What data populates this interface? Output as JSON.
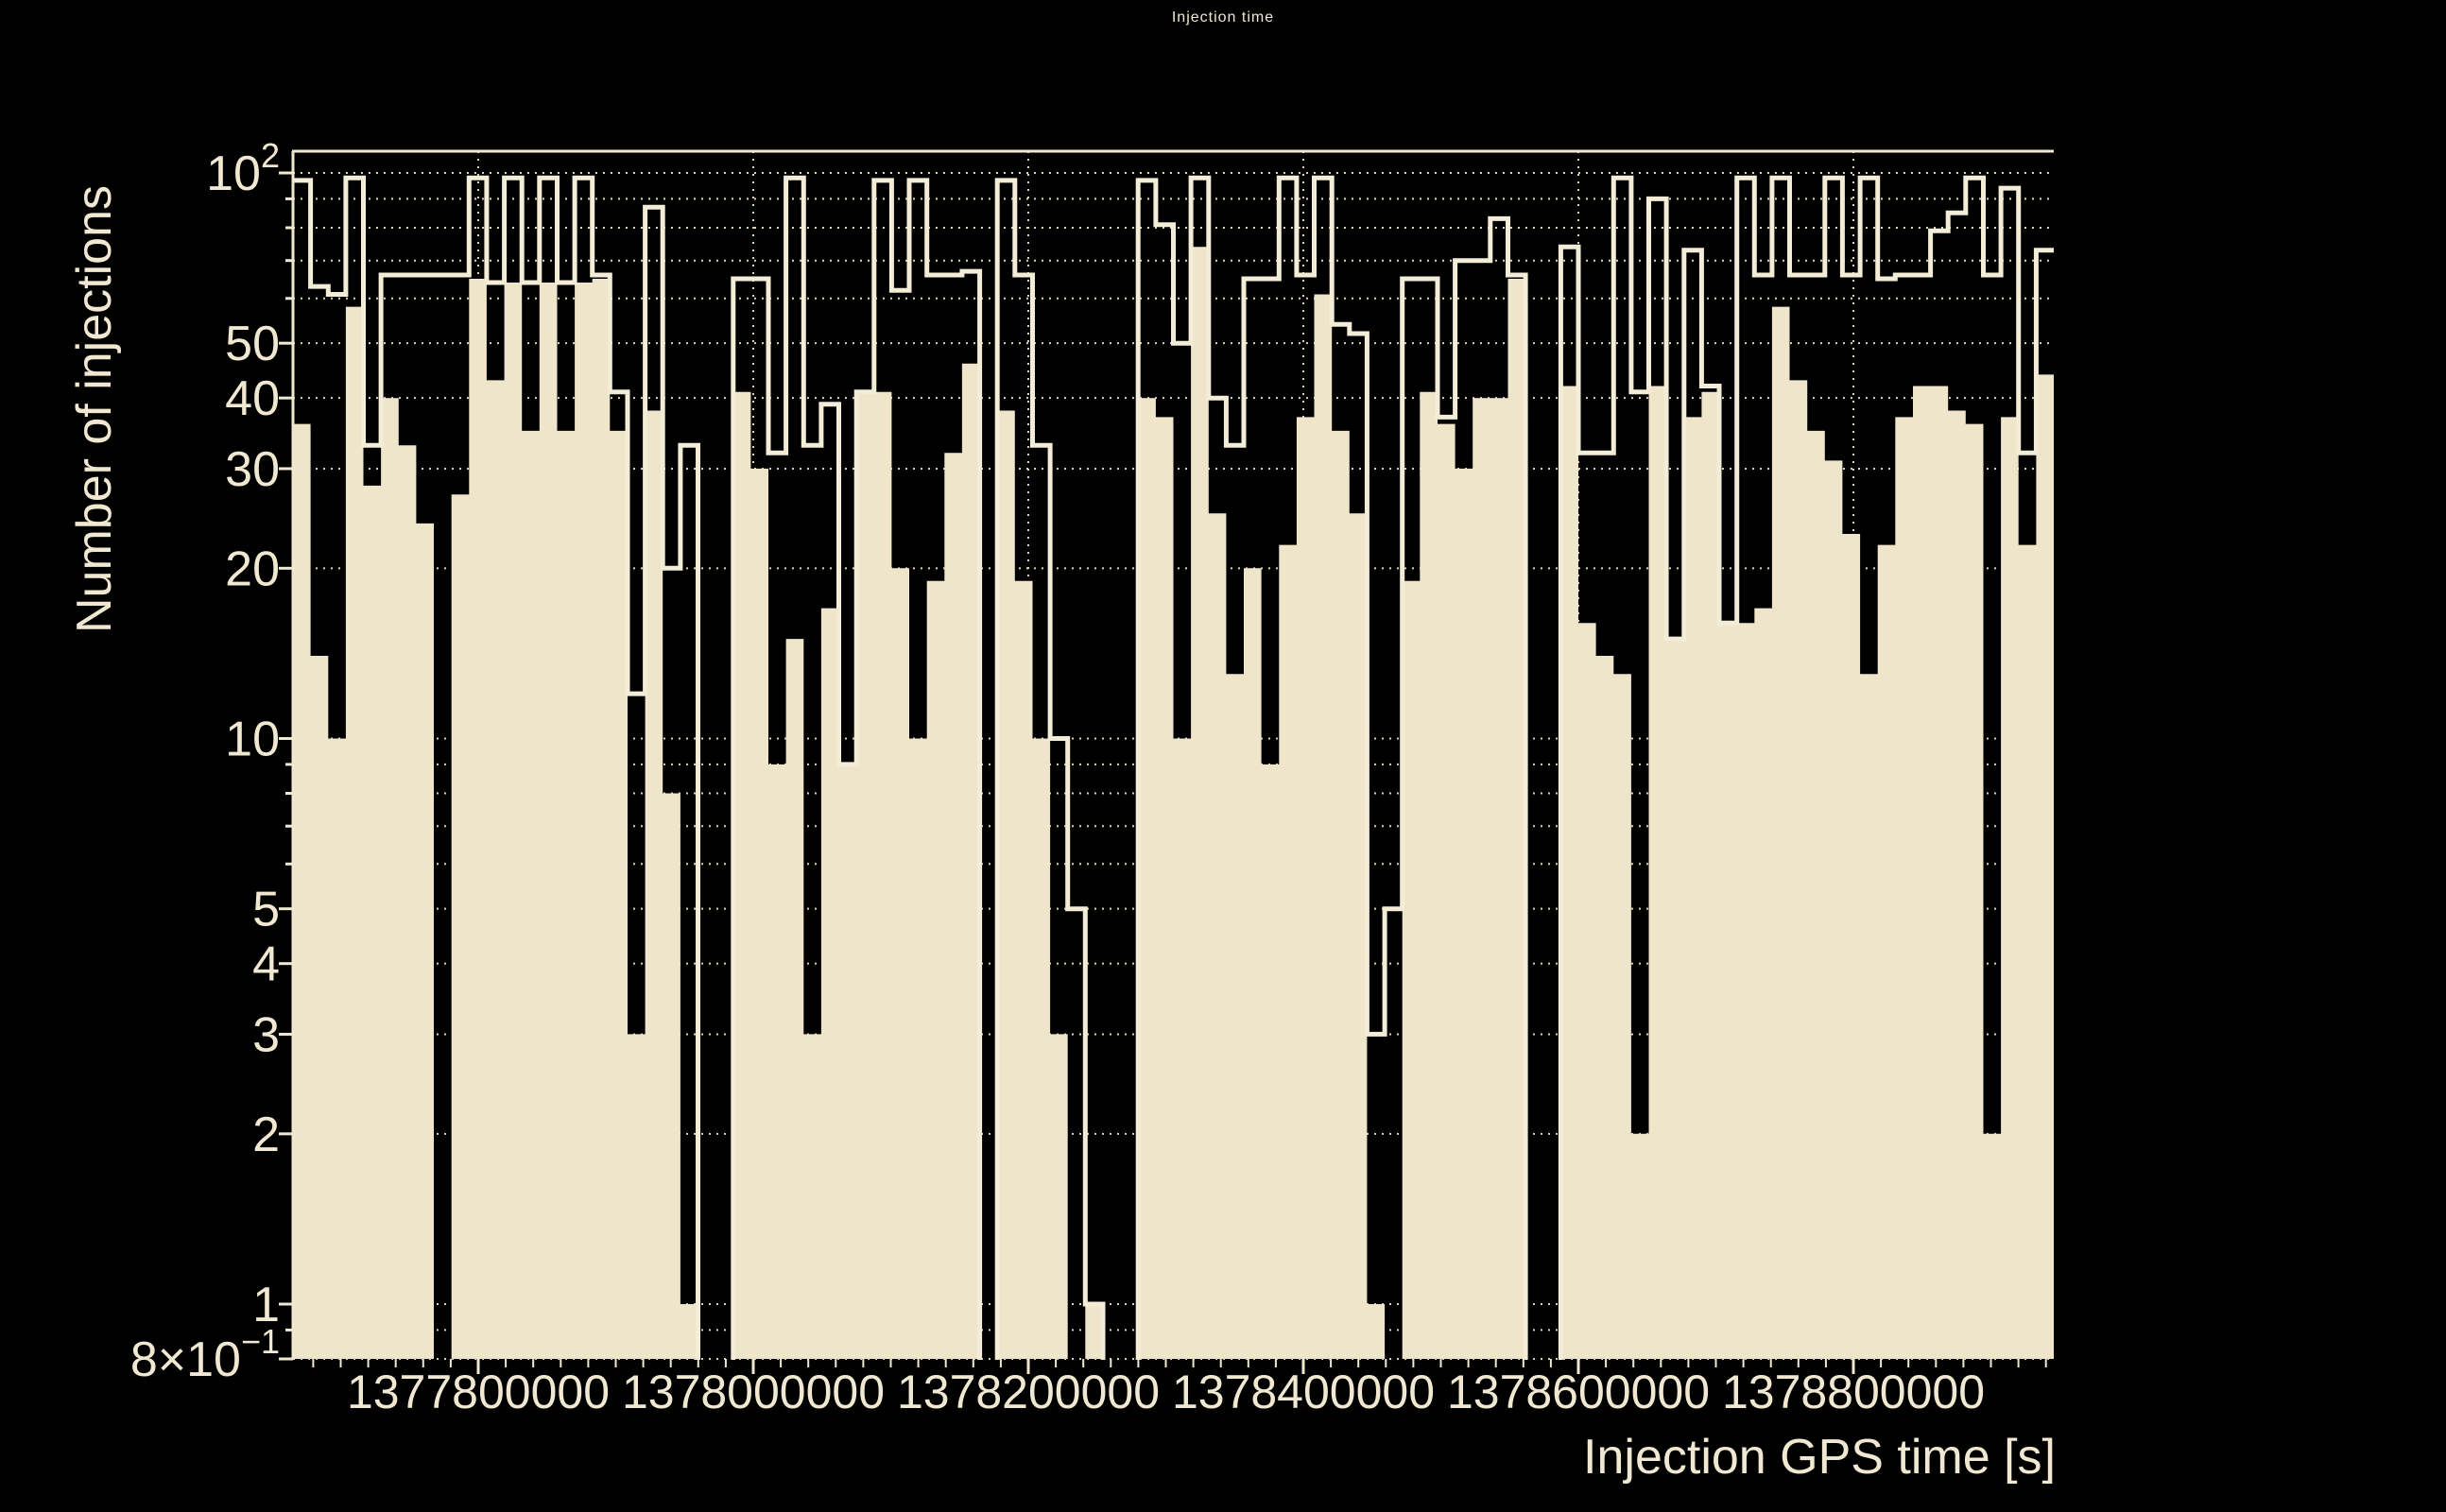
{
  "title": "Injection time",
  "colors": {
    "background": "#000000",
    "fill_histogram": "#EEE5CA",
    "outline_histogram": "#F3ECD6",
    "grid": "#DDD3B2",
    "axis": "#F0E8D1",
    "text": "#F0E8D1"
  },
  "y_axis": {
    "title": "Number of injections",
    "scale": "log",
    "range": [
      0.8,
      109
    ],
    "tick_labels": [
      {
        "value": 100,
        "text": "10",
        "sup": "2"
      },
      {
        "value": 50,
        "text": "50"
      },
      {
        "value": 40,
        "text": "40"
      },
      {
        "value": 30,
        "text": "30"
      },
      {
        "value": 20,
        "text": "20"
      },
      {
        "value": 10,
        "text": "10"
      },
      {
        "value": 5,
        "text": "5"
      },
      {
        "value": 4,
        "text": "4"
      },
      {
        "value": 3,
        "text": "3"
      },
      {
        "value": 2,
        "text": "2"
      },
      {
        "value": 1,
        "text": "1"
      },
      {
        "value": 0.8,
        "text": "8×10",
        "sup": "−1"
      }
    ],
    "gridline_values": [
      0.9,
      1,
      2,
      3,
      4,
      5,
      6,
      7,
      8,
      9,
      10,
      20,
      30,
      40,
      50,
      60,
      70,
      80,
      90,
      100
    ]
  },
  "x_axis": {
    "title": "Injection GPS time [s]",
    "range": [
      1377665300,
      1378945700
    ],
    "ticks": [
      {
        "value": 1377800000,
        "label": "1377800000"
      },
      {
        "value": 1378000000,
        "label": "1378000000"
      },
      {
        "value": 1378200000,
        "label": "1378200000"
      },
      {
        "value": 1378400000,
        "label": "1378400000"
      },
      {
        "value": 1378600000,
        "label": "1378600000"
      },
      {
        "value": 1378800000,
        "label": "1378800000"
      }
    ],
    "minor_tick_step": 20000
  },
  "chart_data": {
    "type": "step-histogram",
    "bin_count": 100,
    "bin_start": 1377665300,
    "bin_width_seconds": 12804,
    "ylabel": "Number of injections",
    "xlabel": "Injection GPS time [s]",
    "ylim": [
      0.8,
      109
    ],
    "grid": true,
    "legend": "none",
    "series": [
      {
        "name": "outline-histogram",
        "style": "step-outline",
        "values": [
          97,
          63,
          61,
          98,
          33,
          66,
          66,
          66,
          66,
          66,
          98,
          64,
          98,
          64,
          98,
          64,
          98,
          66,
          41,
          12,
          87,
          20,
          33,
          0,
          0,
          65,
          65,
          32,
          98,
          33,
          39,
          9,
          41,
          97,
          62,
          97,
          66,
          66,
          67,
          0,
          97,
          66,
          33,
          10,
          5,
          1,
          0,
          0,
          97,
          81,
          50,
          98,
          40,
          33,
          65,
          65,
          98,
          66,
          98,
          54,
          52,
          3,
          5,
          65,
          65,
          37,
          70,
          70,
          83,
          66,
          0,
          0,
          74,
          32,
          32,
          98,
          41,
          90,
          15,
          73,
          42,
          16,
          98,
          66,
          98,
          66,
          66,
          98,
          66,
          98,
          65,
          66,
          66,
          79,
          85,
          98,
          66,
          94,
          32,
          73
        ]
      },
      {
        "name": "filled-histogram",
        "style": "filled",
        "values": [
          36,
          14,
          10,
          58,
          28,
          40,
          33,
          24,
          0,
          27,
          65,
          43,
          64,
          35,
          64,
          35,
          64,
          65,
          35,
          3,
          38,
          8,
          1,
          0,
          0,
          41,
          30,
          9,
          15,
          3,
          17,
          9,
          41,
          41,
          20,
          10,
          19,
          32,
          46,
          0,
          38,
          19,
          10,
          3,
          0,
          1,
          0,
          0,
          40,
          37,
          10,
          74,
          25,
          13,
          20,
          9,
          22,
          37,
          61,
          35,
          25,
          1,
          0,
          19,
          41,
          36,
          30,
          40,
          40,
          65,
          0,
          0,
          42,
          16,
          14,
          13,
          2,
          42,
          15,
          37,
          41,
          16,
          16,
          17,
          58,
          43,
          35,
          31,
          23,
          13,
          22,
          37,
          42,
          42,
          38,
          36,
          2,
          37,
          22,
          44
        ]
      }
    ]
  }
}
